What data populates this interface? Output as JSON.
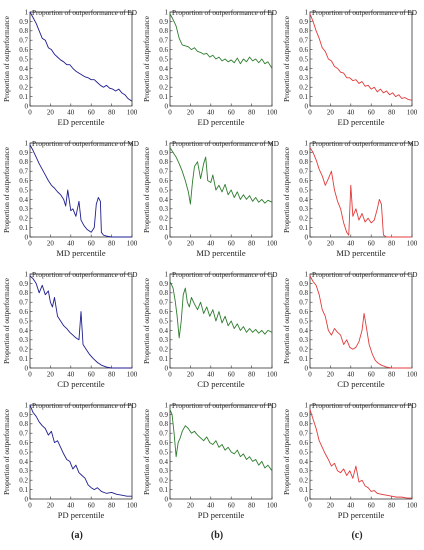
{
  "column_labels": [
    "(a)",
    "(b)",
    "(c)"
  ],
  "colors": {
    "a": "#1f1f8f",
    "b": "#2e7d2e",
    "c": "#e23b3b",
    "axis": "#333333"
  },
  "chart_data": [
    {
      "type": "line",
      "row": 0,
      "col": 0,
      "title": "Proportion of outperformance of ED",
      "xlabel": "ED percentile",
      "ylabel": "Proportion of outperformance",
      "xlim": [
        0,
        100
      ],
      "ylim": [
        0,
        1
      ],
      "xticks": [
        0,
        20,
        40,
        60,
        80,
        100
      ],
      "yticks": [
        0,
        0.1,
        0.2,
        0.3,
        0.4,
        0.5,
        0.6,
        0.7,
        0.8,
        0.9,
        1
      ],
      "color": "#1f1f8f",
      "x": [
        0,
        3,
        6,
        9,
        12,
        15,
        18,
        21,
        24,
        27,
        30,
        33,
        36,
        39,
        42,
        45,
        48,
        51,
        54,
        57,
        60,
        63,
        66,
        69,
        72,
        75,
        78,
        81,
        84,
        87,
        90,
        93,
        96,
        100
      ],
      "y": [
        1.0,
        0.94,
        0.88,
        0.8,
        0.72,
        0.7,
        0.62,
        0.6,
        0.55,
        0.52,
        0.49,
        0.47,
        0.44,
        0.44,
        0.4,
        0.37,
        0.35,
        0.33,
        0.31,
        0.3,
        0.28,
        0.28,
        0.25,
        0.22,
        0.2,
        0.22,
        0.19,
        0.18,
        0.16,
        0.18,
        0.14,
        0.12,
        0.08,
        0.05
      ]
    },
    {
      "type": "line",
      "row": 0,
      "col": 1,
      "title": "Proportion of outperformance of ED",
      "xlabel": "ED percentile",
      "ylabel": "Proportion of outperformance",
      "xlim": [
        0,
        100
      ],
      "ylim": [
        0,
        1
      ],
      "xticks": [
        0,
        20,
        40,
        60,
        80,
        100
      ],
      "yticks": [
        0,
        0.1,
        0.2,
        0.3,
        0.4,
        0.5,
        0.6,
        0.7,
        0.8,
        0.9,
        1
      ],
      "color": "#2e7d2e",
      "x": [
        0,
        3,
        6,
        9,
        12,
        15,
        18,
        21,
        24,
        27,
        30,
        33,
        36,
        39,
        42,
        45,
        48,
        51,
        54,
        57,
        60,
        63,
        66,
        69,
        72,
        75,
        78,
        81,
        84,
        87,
        90,
        93,
        96,
        100
      ],
      "y": [
        0.98,
        0.92,
        0.85,
        0.72,
        0.65,
        0.64,
        0.63,
        0.6,
        0.62,
        0.58,
        0.57,
        0.55,
        0.56,
        0.52,
        0.54,
        0.5,
        0.52,
        0.48,
        0.5,
        0.47,
        0.49,
        0.46,
        0.51,
        0.45,
        0.5,
        0.47,
        0.52,
        0.48,
        0.5,
        0.46,
        0.5,
        0.45,
        0.47,
        0.4
      ]
    },
    {
      "type": "line",
      "row": 0,
      "col": 2,
      "title": "Proportion of outperformance of ED",
      "xlabel": "ED percentile",
      "ylabel": "Proportion of outperformance",
      "xlim": [
        0,
        100
      ],
      "ylim": [
        0,
        1
      ],
      "xticks": [
        0,
        20,
        40,
        60,
        80,
        100
      ],
      "yticks": [
        0,
        0.1,
        0.2,
        0.3,
        0.4,
        0.5,
        0.6,
        0.7,
        0.8,
        0.9,
        1
      ],
      "color": "#e23b3b",
      "x": [
        0,
        3,
        6,
        9,
        12,
        15,
        18,
        21,
        24,
        27,
        30,
        33,
        36,
        39,
        42,
        45,
        48,
        51,
        54,
        57,
        60,
        63,
        66,
        69,
        72,
        75,
        78,
        81,
        84,
        87,
        90,
        93,
        96,
        100
      ],
      "y": [
        0.98,
        0.9,
        0.8,
        0.72,
        0.62,
        0.58,
        0.5,
        0.48,
        0.42,
        0.4,
        0.36,
        0.35,
        0.3,
        0.3,
        0.27,
        0.28,
        0.24,
        0.26,
        0.21,
        0.22,
        0.18,
        0.2,
        0.15,
        0.18,
        0.14,
        0.16,
        0.12,
        0.14,
        0.1,
        0.12,
        0.08,
        0.09,
        0.07,
        0.06
      ]
    },
    {
      "type": "line",
      "row": 1,
      "col": 0,
      "title": "Proportion of outperformance of MD",
      "xlabel": "MD percentile",
      "ylabel": "Proportion of outperformance",
      "xlim": [
        0,
        100
      ],
      "ylim": [
        0,
        1
      ],
      "xticks": [
        0,
        20,
        40,
        60,
        80,
        100
      ],
      "yticks": [
        0,
        0.1,
        0.2,
        0.3,
        0.4,
        0.5,
        0.6,
        0.7,
        0.8,
        0.9,
        1
      ],
      "color": "#1f1f8f",
      "x": [
        0,
        3,
        6,
        9,
        12,
        15,
        18,
        21,
        24,
        27,
        30,
        33,
        35,
        37,
        40,
        42,
        45,
        48,
        50,
        53,
        56,
        60,
        63,
        65,
        67,
        69,
        70,
        72,
        75,
        80,
        90,
        100
      ],
      "y": [
        0.98,
        0.92,
        0.85,
        0.78,
        0.72,
        0.66,
        0.6,
        0.55,
        0.52,
        0.48,
        0.45,
        0.4,
        0.33,
        0.5,
        0.28,
        0.3,
        0.22,
        0.38,
        0.18,
        0.12,
        0.08,
        0.05,
        0.1,
        0.35,
        0.42,
        0.38,
        0.05,
        0.02,
        0.01,
        0.0,
        0.0,
        0.0
      ]
    },
    {
      "type": "line",
      "row": 1,
      "col": 1,
      "title": "Proportion of outperformance of MD",
      "xlabel": "MD percentile",
      "ylabel": "Proportion of outperformance",
      "xlim": [
        0,
        100
      ],
      "ylim": [
        0,
        1
      ],
      "xticks": [
        0,
        20,
        40,
        60,
        80,
        100
      ],
      "yticks": [
        0,
        0.1,
        0.2,
        0.3,
        0.4,
        0.5,
        0.6,
        0.7,
        0.8,
        0.9,
        1
      ],
      "color": "#2e7d2e",
      "x": [
        0,
        3,
        6,
        9,
        12,
        15,
        18,
        20,
        22,
        24,
        27,
        30,
        33,
        35,
        37,
        40,
        42,
        45,
        48,
        51,
        54,
        57,
        60,
        63,
        66,
        69,
        72,
        75,
        78,
        81,
        84,
        87,
        90,
        93,
        96,
        100
      ],
      "y": [
        0.95,
        0.9,
        0.85,
        0.78,
        0.7,
        0.6,
        0.48,
        0.35,
        0.58,
        0.75,
        0.8,
        0.62,
        0.78,
        0.85,
        0.6,
        0.58,
        0.66,
        0.5,
        0.55,
        0.48,
        0.56,
        0.45,
        0.5,
        0.42,
        0.48,
        0.4,
        0.45,
        0.4,
        0.44,
        0.38,
        0.42,
        0.37,
        0.4,
        0.36,
        0.39,
        0.37
      ]
    },
    {
      "type": "line",
      "row": 1,
      "col": 2,
      "title": "Proportion of outperformance of MD",
      "xlabel": "MD percentile",
      "ylabel": "Proportion of outperformance",
      "xlim": [
        0,
        100
      ],
      "ylim": [
        0,
        1
      ],
      "xticks": [
        0,
        20,
        40,
        60,
        80,
        100
      ],
      "yticks": [
        0,
        0.1,
        0.2,
        0.3,
        0.4,
        0.5,
        0.6,
        0.7,
        0.8,
        0.9,
        1
      ],
      "color": "#e23b3b",
      "x": [
        0,
        3,
        6,
        9,
        12,
        15,
        18,
        21,
        24,
        27,
        30,
        33,
        36,
        38,
        40,
        42,
        45,
        48,
        51,
        54,
        57,
        60,
        63,
        66,
        68,
        70,
        72,
        75,
        80,
        90,
        100
      ],
      "y": [
        0.95,
        0.9,
        0.82,
        0.72,
        0.65,
        0.55,
        0.62,
        0.7,
        0.5,
        0.38,
        0.3,
        0.15,
        0.05,
        0.02,
        0.55,
        0.22,
        0.3,
        0.18,
        0.25,
        0.16,
        0.2,
        0.15,
        0.18,
        0.3,
        0.4,
        0.35,
        0.02,
        0.0,
        0.0,
        0.0,
        0.0
      ]
    },
    {
      "type": "line",
      "row": 2,
      "col": 0,
      "title": "Proportion of outperformance of CD",
      "xlabel": "CD percentile",
      "ylabel": "Proportion of outperformance",
      "xlim": [
        0,
        100
      ],
      "ylim": [
        0,
        1
      ],
      "xticks": [
        0,
        20,
        40,
        60,
        80,
        100
      ],
      "yticks": [
        0,
        0.1,
        0.2,
        0.3,
        0.4,
        0.5,
        0.6,
        0.7,
        0.8,
        0.9,
        1
      ],
      "color": "#1f1f8f",
      "x": [
        0,
        3,
        6,
        9,
        12,
        15,
        18,
        20,
        22,
        24,
        27,
        30,
        33,
        36,
        39,
        42,
        45,
        48,
        50,
        52,
        55,
        58,
        62,
        66,
        70,
        75,
        80,
        90,
        100
      ],
      "y": [
        0.98,
        0.95,
        0.9,
        0.8,
        0.88,
        0.78,
        0.82,
        0.7,
        0.65,
        0.75,
        0.55,
        0.5,
        0.45,
        0.42,
        0.38,
        0.35,
        0.32,
        0.3,
        0.6,
        0.25,
        0.2,
        0.15,
        0.1,
        0.06,
        0.03,
        0.01,
        0.0,
        0.0,
        0.0
      ]
    },
    {
      "type": "line",
      "row": 2,
      "col": 1,
      "title": "Proportion of outperformance of CD",
      "xlabel": "CD percentile",
      "ylabel": "Proportion of outperformance",
      "xlim": [
        0,
        100
      ],
      "ylim": [
        0,
        1
      ],
      "xticks": [
        0,
        20,
        40,
        60,
        80,
        100
      ],
      "yticks": [
        0,
        0.1,
        0.2,
        0.3,
        0.4,
        0.5,
        0.6,
        0.7,
        0.8,
        0.9,
        1
      ],
      "color": "#2e7d2e",
      "x": [
        0,
        3,
        5,
        7,
        9,
        11,
        13,
        15,
        17,
        19,
        21,
        24,
        27,
        30,
        33,
        36,
        39,
        42,
        45,
        48,
        51,
        54,
        57,
        60,
        63,
        66,
        69,
        72,
        75,
        78,
        81,
        84,
        87,
        90,
        93,
        96,
        100
      ],
      "y": [
        0.92,
        0.85,
        0.72,
        0.55,
        0.32,
        0.5,
        0.78,
        0.85,
        0.7,
        0.65,
        0.75,
        0.68,
        0.62,
        0.7,
        0.58,
        0.65,
        0.55,
        0.62,
        0.5,
        0.6,
        0.48,
        0.55,
        0.45,
        0.5,
        0.42,
        0.47,
        0.4,
        0.44,
        0.38,
        0.42,
        0.38,
        0.41,
        0.37,
        0.4,
        0.36,
        0.4,
        0.38
      ]
    },
    {
      "type": "line",
      "row": 2,
      "col": 2,
      "title": "Proportion of outperformance of CD",
      "xlabel": "CD percentile",
      "ylabel": "Proportion of outperformance",
      "xlim": [
        0,
        100
      ],
      "ylim": [
        0,
        1
      ],
      "xticks": [
        0,
        20,
        40,
        60,
        80,
        100
      ],
      "yticks": [
        0,
        0.1,
        0.2,
        0.3,
        0.4,
        0.5,
        0.6,
        0.7,
        0.8,
        0.9,
        1
      ],
      "color": "#e23b3b",
      "x": [
        0,
        3,
        6,
        9,
        12,
        15,
        18,
        21,
        24,
        27,
        30,
        33,
        36,
        39,
        42,
        45,
        48,
        51,
        53,
        55,
        58,
        61,
        64,
        67,
        70,
        75,
        80,
        90,
        100
      ],
      "y": [
        0.98,
        0.92,
        0.88,
        0.78,
        0.62,
        0.55,
        0.4,
        0.35,
        0.42,
        0.38,
        0.35,
        0.25,
        0.3,
        0.22,
        0.2,
        0.22,
        0.28,
        0.4,
        0.58,
        0.45,
        0.25,
        0.15,
        0.08,
        0.05,
        0.03,
        0.01,
        0.0,
        0.0,
        0.0
      ]
    },
    {
      "type": "line",
      "row": 3,
      "col": 0,
      "title": "Proportion of outperformance of PD",
      "xlabel": "PD percentile",
      "ylabel": "Proportion of outperformance",
      "xlim": [
        0,
        100
      ],
      "ylim": [
        0,
        1
      ],
      "xticks": [
        0,
        20,
        40,
        60,
        80,
        100
      ],
      "yticks": [
        0,
        0.1,
        0.2,
        0.3,
        0.4,
        0.5,
        0.6,
        0.7,
        0.8,
        0.9,
        1
      ],
      "color": "#1f1f8f",
      "x": [
        0,
        3,
        6,
        9,
        12,
        15,
        18,
        21,
        24,
        27,
        30,
        33,
        36,
        39,
        42,
        45,
        48,
        51,
        54,
        57,
        60,
        63,
        66,
        70,
        75,
        80,
        85,
        90,
        95,
        100
      ],
      "y": [
        1.0,
        0.92,
        0.88,
        0.82,
        0.78,
        0.75,
        0.68,
        0.72,
        0.6,
        0.62,
        0.55,
        0.48,
        0.42,
        0.4,
        0.32,
        0.36,
        0.28,
        0.25,
        0.22,
        0.15,
        0.12,
        0.1,
        0.12,
        0.08,
        0.06,
        0.07,
        0.05,
        0.04,
        0.03,
        0.03
      ]
    },
    {
      "type": "line",
      "row": 3,
      "col": 1,
      "title": "Proportion of outperformance of PD",
      "xlabel": "PD percentile",
      "ylabel": "Proportion of outperformance",
      "xlim": [
        0,
        100
      ],
      "ylim": [
        0,
        1
      ],
      "xticks": [
        0,
        20,
        40,
        60,
        80,
        100
      ],
      "yticks": [
        0,
        0.1,
        0.2,
        0.3,
        0.4,
        0.5,
        0.6,
        0.7,
        0.8,
        0.9,
        1
      ],
      "color": "#2e7d2e",
      "x": [
        0,
        2,
        4,
        6,
        8,
        10,
        12,
        15,
        18,
        21,
        24,
        27,
        30,
        33,
        36,
        39,
        42,
        45,
        48,
        51,
        54,
        57,
        60,
        63,
        66,
        69,
        72,
        75,
        78,
        81,
        84,
        87,
        90,
        93,
        96,
        100
      ],
      "y": [
        0.95,
        0.9,
        0.7,
        0.45,
        0.6,
        0.65,
        0.72,
        0.78,
        0.75,
        0.7,
        0.72,
        0.68,
        0.65,
        0.62,
        0.66,
        0.6,
        0.58,
        0.62,
        0.55,
        0.58,
        0.52,
        0.55,
        0.5,
        0.48,
        0.52,
        0.45,
        0.48,
        0.42,
        0.45,
        0.4,
        0.42,
        0.36,
        0.4,
        0.33,
        0.36,
        0.3
      ]
    },
    {
      "type": "line",
      "row": 3,
      "col": 2,
      "title": "Proportion of outperformance of PD",
      "xlabel": "PD percentile",
      "ylabel": "Proportion of outperformance",
      "xlim": [
        0,
        100
      ],
      "ylim": [
        0,
        1
      ],
      "xticks": [
        0,
        20,
        40,
        60,
        80,
        100
      ],
      "yticks": [
        0,
        0.1,
        0.2,
        0.3,
        0.4,
        0.5,
        0.6,
        0.7,
        0.8,
        0.9,
        1
      ],
      "color": "#e23b3b",
      "x": [
        0,
        3,
        6,
        9,
        12,
        15,
        18,
        21,
        24,
        27,
        30,
        33,
        36,
        39,
        42,
        45,
        48,
        51,
        54,
        57,
        60,
        63,
        66,
        70,
        75,
        80,
        85,
        90,
        95,
        100
      ],
      "y": [
        0.95,
        0.85,
        0.75,
        0.62,
        0.55,
        0.48,
        0.42,
        0.35,
        0.38,
        0.3,
        0.28,
        0.32,
        0.25,
        0.3,
        0.22,
        0.35,
        0.18,
        0.2,
        0.14,
        0.12,
        0.08,
        0.09,
        0.06,
        0.05,
        0.04,
        0.03,
        0.02,
        0.02,
        0.01,
        0.01
      ]
    }
  ]
}
